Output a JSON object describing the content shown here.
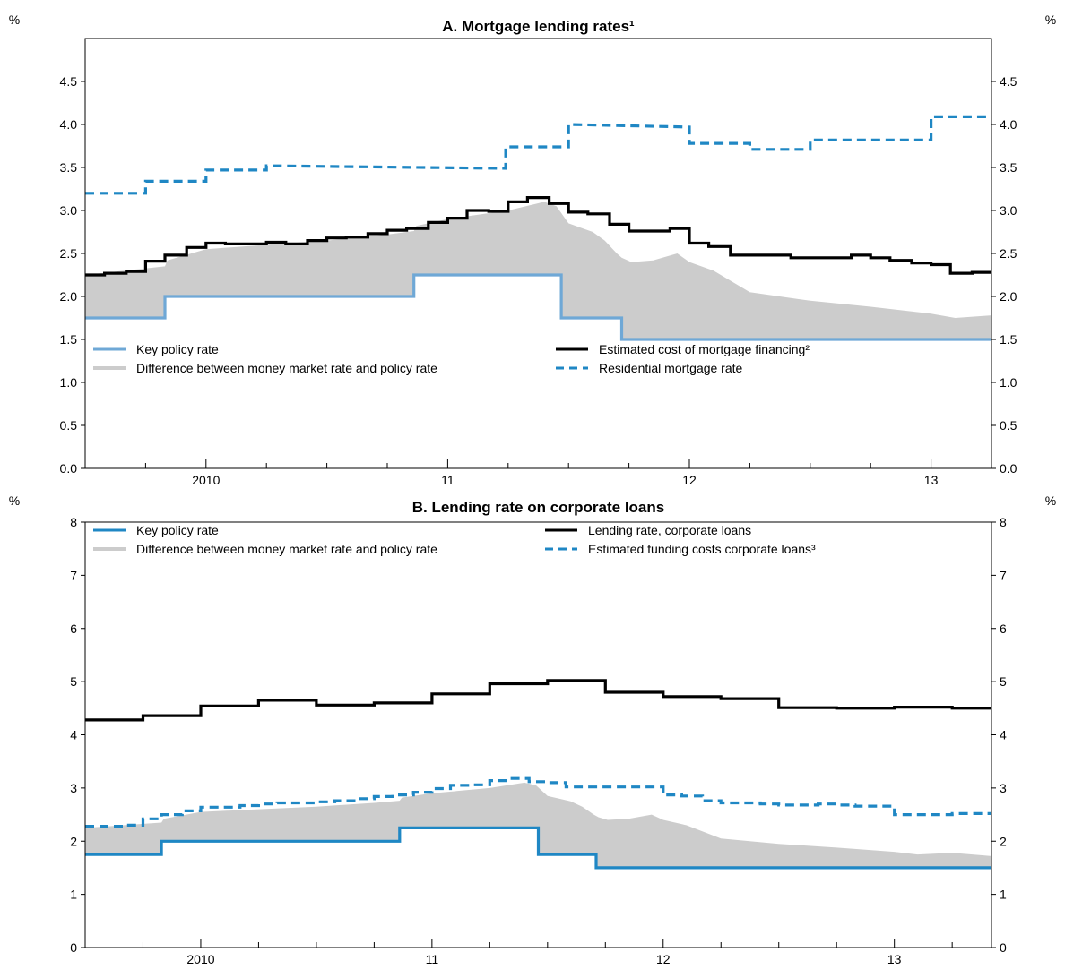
{
  "chart_data": [
    {
      "type": "line",
      "title": "A. Mortgage lending rates¹",
      "ylabel_left": "%",
      "ylabel_right": "%",
      "ylim": [
        0,
        5
      ],
      "yticks": [
        0.0,
        0.5,
        1.0,
        1.5,
        2.0,
        2.5,
        3.0,
        3.5,
        4.0,
        4.5
      ],
      "ytick_labels": [
        "0.0",
        "0.5",
        "1.0",
        "1.5",
        "2.0",
        "2.5",
        "3.0",
        "3.5",
        "4.0",
        "4.5"
      ],
      "xlim": [
        2009.5,
        2013.25
      ],
      "xtick_labels": [
        {
          "label": "2010",
          "x": 2010.0
        },
        {
          "label": "11",
          "x": 2011.0
        },
        {
          "label": "12",
          "x": 2012.0
        },
        {
          "label": "13",
          "x": 2013.0
        }
      ],
      "legend": [
        {
          "key": "policy",
          "label": "Key policy rate"
        },
        {
          "key": "diff",
          "label": "Difference between money market rate and policy rate"
        },
        {
          "key": "cost",
          "label": "Estimated cost of mortgage financing²"
        },
        {
          "key": "mortgage",
          "label": "Residential mortgage rate"
        }
      ],
      "series": [
        {
          "key": "policy",
          "name": "Key policy rate",
          "color": "#6fa8d6",
          "step": true,
          "x": [
            2009.5,
            2009.83,
            2009.83,
            2010.86,
            2010.86,
            2011.47,
            2011.47,
            2011.72,
            2011.72,
            2013.25
          ],
          "y": [
            1.75,
            1.75,
            2.0,
            2.0,
            2.25,
            2.25,
            1.75,
            1.75,
            1.5,
            1.5
          ]
        },
        {
          "key": "cost",
          "name": "Estimated cost of mortgage financing²",
          "color": "#000000",
          "step": true,
          "x": [
            2009.5,
            2009.58,
            2009.67,
            2009.75,
            2009.83,
            2009.92,
            2010.0,
            2010.08,
            2010.17,
            2010.25,
            2010.33,
            2010.42,
            2010.5,
            2010.58,
            2010.67,
            2010.75,
            2010.83,
            2010.92,
            2011.0,
            2011.08,
            2011.17,
            2011.25,
            2011.33,
            2011.42,
            2011.5,
            2011.58,
            2011.67,
            2011.75,
            2011.83,
            2011.92,
            2012.0,
            2012.08,
            2012.17,
            2012.25,
            2012.33,
            2012.42,
            2012.5,
            2012.58,
            2012.67,
            2012.75,
            2012.83,
            2012.92,
            2013.0,
            2013.08,
            2013.17,
            2013.25
          ],
          "y": [
            2.25,
            2.27,
            2.29,
            2.41,
            2.48,
            2.57,
            2.62,
            2.61,
            2.61,
            2.63,
            2.61,
            2.65,
            2.68,
            2.69,
            2.73,
            2.77,
            2.79,
            2.86,
            2.91,
            3.0,
            2.99,
            3.1,
            3.15,
            3.08,
            2.98,
            2.96,
            2.84,
            2.76,
            2.76,
            2.79,
            2.62,
            2.58,
            2.48,
            2.48,
            2.48,
            2.45,
            2.45,
            2.45,
            2.48,
            2.45,
            2.42,
            2.39,
            2.37,
            2.27,
            2.28,
            2.28
          ]
        },
        {
          "key": "mortgage",
          "name": "Residential mortgage rate",
          "color": "#1f87c4",
          "step": true,
          "dashed": true,
          "x": [
            2009.5,
            2009.75,
            2009.75,
            2010.0,
            2010.0,
            2010.25,
            2010.25,
            2011.24,
            2011.24,
            2011.5,
            2011.5,
            2012.0,
            2012.0,
            2012.25,
            2012.25,
            2012.5,
            2012.5,
            2013.0,
            2013.0,
            2013.25
          ],
          "y": [
            3.2,
            3.2,
            3.34,
            3.34,
            3.47,
            3.47,
            3.52,
            3.49,
            3.74,
            3.74,
            4.0,
            3.97,
            3.78,
            3.78,
            3.71,
            3.71,
            3.82,
            3.82,
            4.09,
            4.09
          ]
        },
        {
          "key": "diff",
          "name": "Difference between money market rate and policy rate",
          "color": "#cccccc",
          "area": true,
          "x": [
            2009.5,
            2009.83,
            2009.84,
            2010.0,
            2010.25,
            2010.5,
            2010.75,
            2010.86,
            2010.87,
            2011.0,
            2011.25,
            2011.4,
            2011.45,
            2011.5,
            2011.55,
            2011.6,
            2011.65,
            2011.7,
            2011.72,
            2011.76,
            2011.85,
            2011.95,
            2012.0,
            2012.1,
            2012.25,
            2012.5,
            2012.75,
            2013.0,
            2013.1,
            2013.25
          ],
          "y": [
            2.25,
            2.35,
            2.42,
            2.55,
            2.6,
            2.65,
            2.72,
            2.76,
            2.82,
            2.9,
            3.0,
            3.1,
            3.05,
            2.85,
            2.8,
            2.75,
            2.65,
            2.5,
            2.45,
            2.4,
            2.42,
            2.5,
            2.4,
            2.3,
            2.05,
            1.95,
            1.88,
            1.8,
            1.75,
            1.78
          ]
        }
      ]
    },
    {
      "type": "line",
      "title": "B. Lending rate on corporate loans",
      "ylabel_left": "%",
      "ylabel_right": "%",
      "ylim": [
        0,
        8
      ],
      "yticks": [
        0,
        1,
        2,
        3,
        4,
        5,
        6,
        7,
        8
      ],
      "ytick_labels": [
        "0",
        "1",
        "2",
        "3",
        "4",
        "5",
        "6",
        "7",
        "8"
      ],
      "xlim": [
        2009.5,
        2013.42
      ],
      "xtick_labels": [
        {
          "label": "2010",
          "x": 2010.0
        },
        {
          "label": "11",
          "x": 2011.0
        },
        {
          "label": "12",
          "x": 2012.0
        },
        {
          "label": "13",
          "x": 2013.0
        }
      ],
      "legend": [
        {
          "key": "policy",
          "label": "Key policy rate"
        },
        {
          "key": "diff",
          "label": "Difference between money market rate and policy rate"
        },
        {
          "key": "lending",
          "label": "Lending rate, corporate loans"
        },
        {
          "key": "funding",
          "label": "Estimated funding costs corporate loans³"
        }
      ],
      "series": [
        {
          "key": "policy",
          "name": "Key policy rate",
          "color": "#1f87c4",
          "step": true,
          "x": [
            2009.5,
            2009.83,
            2009.83,
            2010.86,
            2010.86,
            2011.46,
            2011.46,
            2011.71,
            2011.71,
            2013.42
          ],
          "y": [
            1.75,
            1.75,
            2.0,
            2.0,
            2.25,
            2.25,
            1.75,
            1.75,
            1.5,
            1.5
          ]
        },
        {
          "key": "lending",
          "name": "Lending rate, corporate loans",
          "color": "#000000",
          "step": true,
          "x": [
            2009.5,
            2009.75,
            2009.75,
            2010.0,
            2010.0,
            2010.25,
            2010.25,
            2010.5,
            2010.5,
            2010.75,
            2010.75,
            2011.0,
            2011.0,
            2011.25,
            2011.25,
            2011.5,
            2011.5,
            2011.75,
            2011.75,
            2012.0,
            2012.0,
            2012.25,
            2012.25,
            2012.5,
            2012.5,
            2012.75,
            2012.75,
            2013.0,
            2013.0,
            2013.25,
            2013.25,
            2013.42
          ],
          "y": [
            4.28,
            4.28,
            4.36,
            4.36,
            4.54,
            4.54,
            4.65,
            4.65,
            4.56,
            4.56,
            4.6,
            4.6,
            4.77,
            4.77,
            4.96,
            4.96,
            5.02,
            5.02,
            4.8,
            4.8,
            4.72,
            4.72,
            4.68,
            4.68,
            4.51,
            4.51,
            4.5,
            4.5,
            4.52,
            4.52,
            4.5,
            4.5
          ]
        },
        {
          "key": "funding",
          "name": "Estimated funding costs corporate loans³",
          "color": "#1f87c4",
          "step": true,
          "dashed": true,
          "x": [
            2009.5,
            2009.58,
            2009.67,
            2009.75,
            2009.83,
            2009.92,
            2010.0,
            2010.08,
            2010.17,
            2010.25,
            2010.33,
            2010.42,
            2010.5,
            2010.58,
            2010.67,
            2010.75,
            2010.83,
            2010.92,
            2011.0,
            2011.08,
            2011.17,
            2011.25,
            2011.33,
            2011.42,
            2011.5,
            2011.58,
            2011.67,
            2011.75,
            2011.83,
            2011.92,
            2012.0,
            2012.08,
            2012.17,
            2012.25,
            2012.33,
            2012.42,
            2012.5,
            2012.58,
            2012.67,
            2012.75,
            2012.83,
            2012.92,
            2013.0,
            2013.08,
            2013.17,
            2013.25,
            2013.42
          ],
          "y": [
            2.28,
            2.28,
            2.3,
            2.42,
            2.5,
            2.57,
            2.64,
            2.64,
            2.67,
            2.7,
            2.72,
            2.72,
            2.74,
            2.76,
            2.8,
            2.84,
            2.87,
            2.92,
            2.99,
            3.05,
            3.06,
            3.14,
            3.18,
            3.12,
            3.1,
            3.02,
            3.02,
            3.02,
            3.02,
            3.02,
            2.87,
            2.85,
            2.76,
            2.72,
            2.72,
            2.7,
            2.68,
            2.68,
            2.7,
            2.68,
            2.66,
            2.66,
            2.5,
            2.5,
            2.5,
            2.52,
            2.52
          ]
        },
        {
          "key": "diff",
          "name": "Difference between money market rate and policy rate",
          "color": "#cccccc",
          "area": true,
          "x": [
            2009.5,
            2009.83,
            2009.84,
            2010.0,
            2010.25,
            2010.5,
            2010.75,
            2010.86,
            2010.87,
            2011.0,
            2011.25,
            2011.4,
            2011.45,
            2011.5,
            2011.55,
            2011.6,
            2011.65,
            2011.7,
            2011.72,
            2011.76,
            2011.85,
            2011.95,
            2012.0,
            2012.1,
            2012.25,
            2012.5,
            2012.75,
            2013.0,
            2013.1,
            2013.25,
            2013.42
          ],
          "y": [
            2.25,
            2.35,
            2.42,
            2.55,
            2.6,
            2.65,
            2.72,
            2.76,
            2.82,
            2.9,
            3.0,
            3.1,
            3.05,
            2.85,
            2.8,
            2.75,
            2.65,
            2.5,
            2.45,
            2.4,
            2.42,
            2.5,
            2.4,
            2.3,
            2.05,
            1.95,
            1.88,
            1.8,
            1.75,
            1.78,
            1.72
          ]
        }
      ]
    }
  ]
}
